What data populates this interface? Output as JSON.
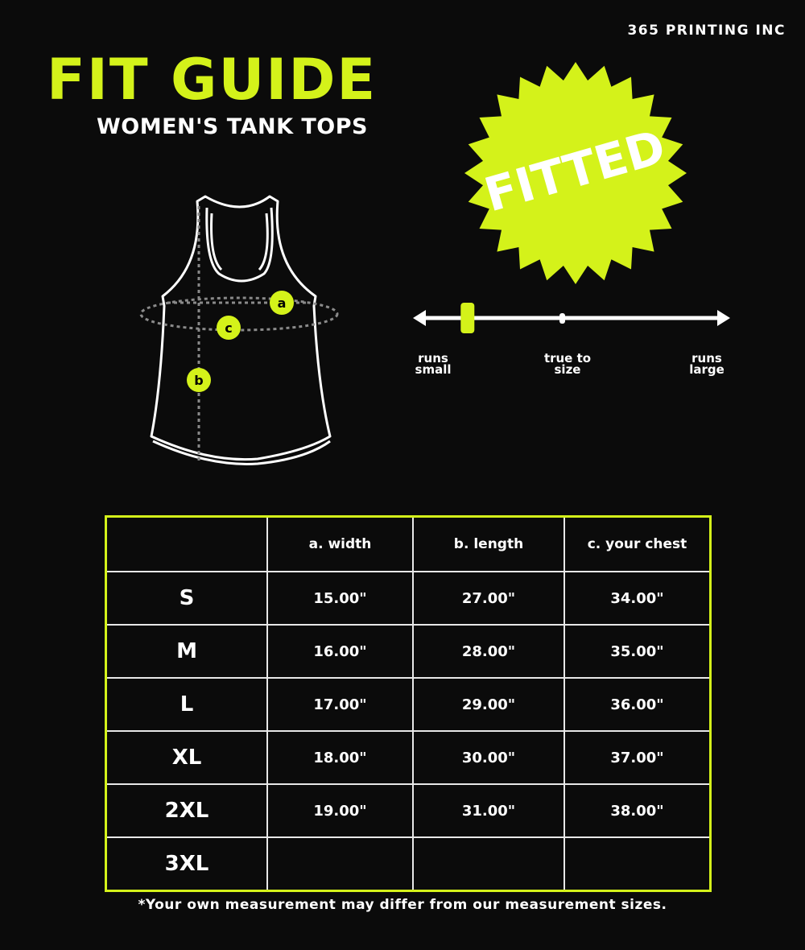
{
  "brand": "365 PRINTING INC",
  "title": "FIT GUIDE",
  "subtitle": "WOMEN'S TANK TOPS",
  "badge": {
    "text": "FITTED",
    "icon": "starburst-badge"
  },
  "diagram": {
    "labels": [
      "a",
      "b",
      "c"
    ]
  },
  "fit_scale": {
    "position": 0.16,
    "labels": {
      "small": [
        "runs",
        "small"
      ],
      "true": [
        "true to",
        "size"
      ],
      "large": [
        "runs",
        "large"
      ]
    }
  },
  "colors": {
    "accent": "#d4f21a",
    "background": "#0b0b0b",
    "text": "#ffffff"
  },
  "table": {
    "headers": [
      "",
      "a. width",
      "b. length",
      "c. your chest"
    ],
    "rows": [
      [
        "S",
        "15.00\"",
        "27.00\"",
        "34.00\""
      ],
      [
        "M",
        "16.00\"",
        "28.00\"",
        "35.00\""
      ],
      [
        "L",
        "17.00\"",
        "29.00\"",
        "36.00\""
      ],
      [
        "XL",
        "18.00\"",
        "30.00\"",
        "37.00\""
      ],
      [
        "2XL",
        "19.00\"",
        "31.00\"",
        "38.00\""
      ],
      [
        "3XL",
        "",
        "",
        ""
      ]
    ]
  },
  "footnote": "*Your own measurement may differ from our measurement sizes."
}
